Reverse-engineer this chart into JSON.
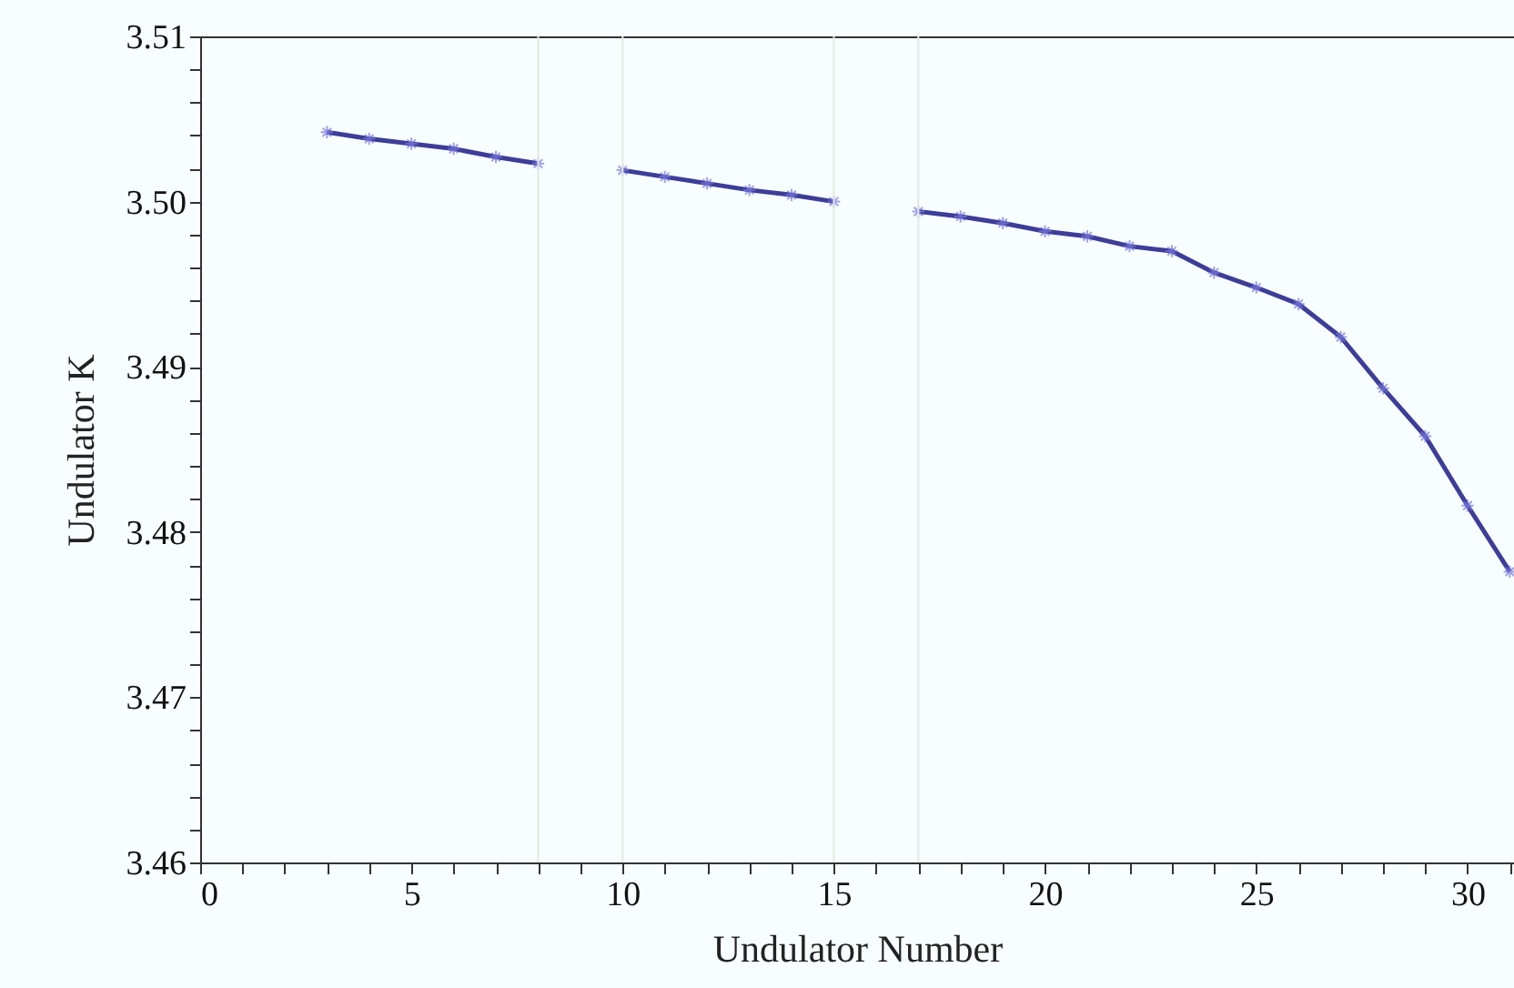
{
  "chart_data": {
    "type": "line",
    "xlabel": "Undulator Number",
    "ylabel": "Undulator K",
    "x": [
      3,
      4,
      5,
      6,
      7,
      8,
      9,
      10,
      11,
      12,
      13,
      14,
      15,
      16,
      17,
      18,
      19,
      20,
      21,
      22,
      23,
      24,
      25,
      26,
      27,
      28,
      29,
      30,
      31
    ],
    "series": [
      {
        "color": "#3d3d99",
        "values": [
          3.5042,
          3.5038,
          3.5035,
          3.5032,
          3.5027,
          3.5023,
          null,
          3.5019,
          3.5015,
          3.5011,
          3.5007,
          3.5004,
          3.5,
          null,
          3.4994,
          3.4991,
          3.4987,
          3.4982,
          3.4979,
          3.4973,
          3.497,
          3.4957,
          3.4948,
          3.4938,
          3.4918,
          3.4887,
          3.4858,
          3.4816,
          3.4776
        ]
      }
    ],
    "marker": "cross",
    "line_style": "solid",
    "grid": false,
    "xlim": [
      0,
      31.1
    ],
    "ylim": [
      3.46,
      3.51
    ],
    "xticks": [
      0,
      {
        "value": 1,
        "label": null
      },
      {
        "value": 2,
        "label": null
      },
      {
        "value": 3,
        "label": null
      },
      {
        "value": 4,
        "label": null
      },
      5,
      {
        "value": 6,
        "label": null
      },
      {
        "value": 7,
        "label": null
      },
      {
        "value": 8,
        "label": null
      },
      {
        "value": 9,
        "label": null
      },
      10,
      {
        "value": 11,
        "label": null
      },
      {
        "value": 12,
        "label": null
      },
      {
        "value": 13,
        "label": null
      },
      {
        "value": 14,
        "label": null
      },
      15,
      {
        "value": 16,
        "label": null
      },
      {
        "value": 17,
        "label": null
      },
      {
        "value": 18,
        "label": null
      },
      {
        "value": 19,
        "label": null
      },
      20,
      {
        "value": 21,
        "label": null
      },
      {
        "value": 22,
        "label": null
      },
      {
        "value": 23,
        "label": null
      },
      {
        "value": 24,
        "label": null
      },
      25,
      {
        "value": 26,
        "label": null
      },
      {
        "value": 27,
        "label": null
      },
      {
        "value": 28,
        "label": null
      },
      {
        "value": 29,
        "label": null
      },
      30,
      {
        "value": 31,
        "label": null
      }
    ],
    "yticks": [
      {
        "value": 3.46,
        "label": "3.46"
      },
      {
        "value": 3.462,
        "label": null
      },
      {
        "value": 3.464,
        "label": null
      },
      {
        "value": 3.466,
        "label": null
      },
      {
        "value": 3.468,
        "label": null
      },
      {
        "value": 3.47,
        "label": "3.47"
      },
      {
        "value": 3.472,
        "label": null
      },
      {
        "value": 3.474,
        "label": null
      },
      {
        "value": 3.476,
        "label": null
      },
      {
        "value": 3.478,
        "label": null
      },
      {
        "value": 3.48,
        "label": "3.48"
      },
      {
        "value": 3.482,
        "label": null
      },
      {
        "value": 3.484,
        "label": null
      },
      {
        "value": 3.486,
        "label": null
      },
      {
        "value": 3.488,
        "label": null
      },
      {
        "value": 3.49,
        "label": "3.49"
      },
      {
        "value": 3.492,
        "label": null
      },
      {
        "value": 3.494,
        "label": null
      },
      {
        "value": 3.496,
        "label": null
      },
      {
        "value": 3.498,
        "label": null
      },
      {
        "value": 3.5,
        "label": "3.50"
      },
      {
        "value": 3.502,
        "label": null
      },
      {
        "value": 3.504,
        "label": null
      },
      {
        "value": 3.506,
        "label": null
      },
      {
        "value": 3.508,
        "label": null
      },
      {
        "value": 3.51,
        "label": "3.51"
      }
    ],
    "ref_lines": [
      {
        "axis": "x",
        "value": 8,
        "color": "#e4eade"
      },
      {
        "axis": "x",
        "value": 10,
        "color": "#e4eade"
      },
      {
        "axis": "x",
        "value": 15,
        "color": "#e4eade"
      },
      {
        "axis": "x",
        "value": 17,
        "color": "#e4eade"
      }
    ]
  }
}
